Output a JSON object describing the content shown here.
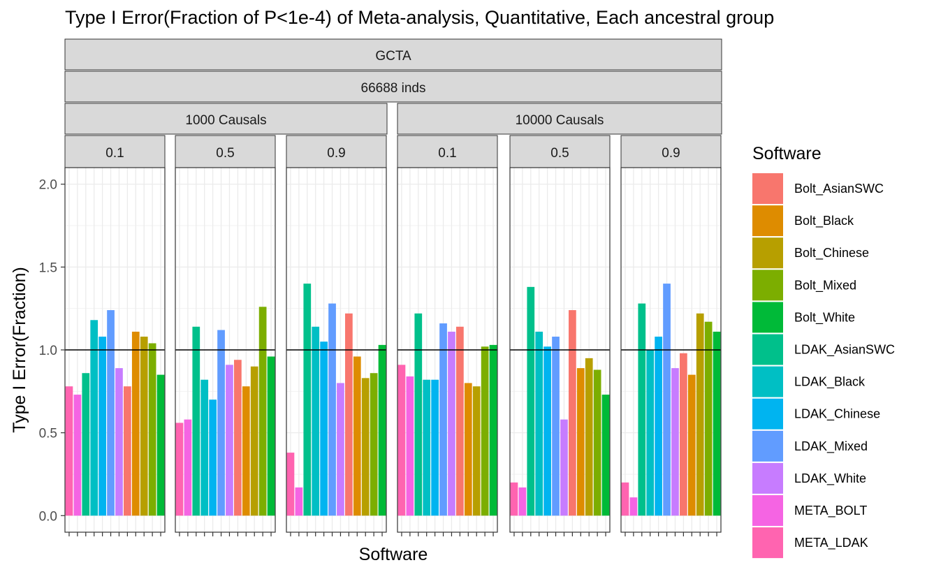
{
  "chart_data": {
    "type": "bar",
    "title": "Type I Error(Fraction of P<1e-4) of Meta-analysis, Quantitative, Each ancestral group",
    "xlabel": "Software",
    "ylabel": "Type I Error(Fraction)",
    "ylim": [
      -0.1,
      2.1
    ],
    "yticks": [
      0.0,
      0.5,
      1.0,
      1.5,
      2.0
    ],
    "ytick_labels": [
      "0.0",
      "0.5",
      "1.0",
      "1.5",
      "2.0"
    ],
    "reference_line": 1.0,
    "grid": true,
    "legend_position": "right",
    "strip_top": "GCTA",
    "strip_second": "66688 inds",
    "causal_groups": [
      {
        "label": "1000 Causals"
      },
      {
        "label": "10000 Causals"
      }
    ],
    "heritability_labels": [
      "0.1",
      "0.5",
      "0.9"
    ],
    "legend": {
      "title": "Software",
      "entries": [
        {
          "name": "Bolt_AsianSWC",
          "color": "#F8766D"
        },
        {
          "name": "Bolt_Black",
          "color": "#DE8C00"
        },
        {
          "name": "Bolt_Chinese",
          "color": "#B79F00"
        },
        {
          "name": "Bolt_Mixed",
          "color": "#7CAE00"
        },
        {
          "name": "Bolt_White",
          "color": "#00BA38"
        },
        {
          "name": "LDAK_AsianSWC",
          "color": "#00C08B"
        },
        {
          "name": "LDAK_Black",
          "color": "#00BFC4"
        },
        {
          "name": "LDAK_Chinese",
          "color": "#00B4F0"
        },
        {
          "name": "LDAK_Mixed",
          "color": "#619CFF"
        },
        {
          "name": "LDAK_White",
          "color": "#C77CFF"
        },
        {
          "name": "META_BOLT",
          "color": "#F564E3"
        },
        {
          "name": "META_LDAK",
          "color": "#FF64B0"
        }
      ]
    },
    "categories": [
      "META_LDAK",
      "META_BOLT",
      "LDAK_AsianSWC",
      "LDAK_Black",
      "LDAK_Chinese",
      "LDAK_Mixed",
      "LDAK_White",
      "Bolt_AsianSWC",
      "Bolt_Black",
      "Bolt_Chinese",
      "Bolt_Mixed",
      "Bolt_White"
    ],
    "panels": [
      {
        "causals": "1000 Causals",
        "h2": "0.1",
        "values": [
          0.78,
          0.73,
          0.86,
          1.18,
          1.08,
          1.24,
          0.89,
          0.78,
          1.11,
          1.08,
          1.04,
          0.85
        ]
      },
      {
        "causals": "1000 Causals",
        "h2": "0.5",
        "values": [
          0.56,
          0.58,
          1.14,
          0.82,
          0.7,
          1.12,
          0.91,
          0.94,
          0.78,
          0.9,
          1.26,
          0.96
        ]
      },
      {
        "causals": "1000 Causals",
        "h2": "0.9",
        "values": [
          0.38,
          0.17,
          1.4,
          1.14,
          1.05,
          1.28,
          0.8,
          1.22,
          0.96,
          0.83,
          0.86,
          1.03
        ]
      },
      {
        "causals": "10000 Causals",
        "h2": "0.1",
        "values": [
          0.91,
          0.84,
          1.22,
          0.82,
          0.82,
          1.16,
          1.11,
          1.14,
          0.8,
          0.78,
          1.02,
          1.03
        ]
      },
      {
        "causals": "10000 Causals",
        "h2": "0.5",
        "values": [
          0.2,
          0.17,
          1.38,
          1.11,
          1.02,
          1.08,
          0.58,
          1.24,
          0.89,
          0.95,
          0.88,
          0.73
        ]
      },
      {
        "causals": "10000 Causals",
        "h2": "0.9",
        "values": [
          0.2,
          0.11,
          1.28,
          1.0,
          1.08,
          1.4,
          0.89,
          0.98,
          0.85,
          1.22,
          1.17,
          1.11
        ]
      }
    ]
  }
}
